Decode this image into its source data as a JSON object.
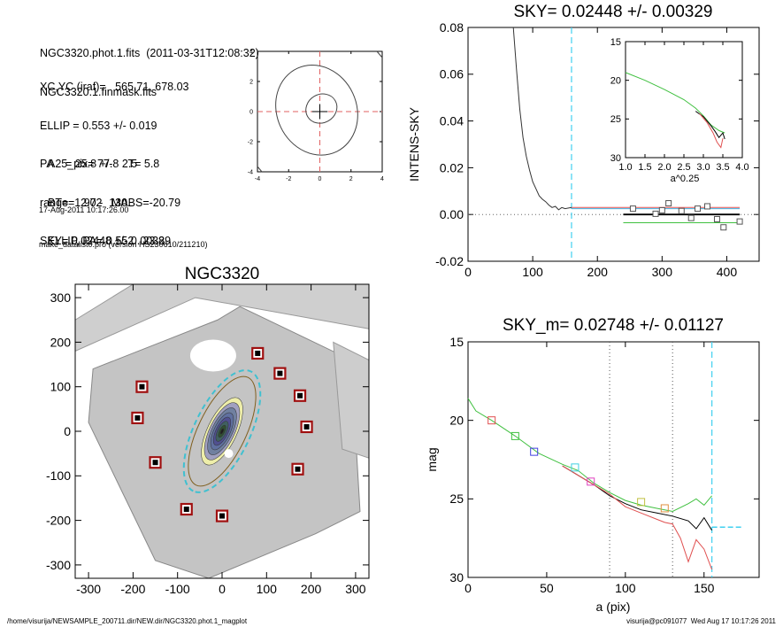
{
  "header": {
    "line1": "NGC3320.phot.1.fits  (2011-03-31T12:08:32)",
    "line2": "NGC3320.1.finmask.fits",
    "xcyc": "XC,YC (iraf)=   565.71, 678.03",
    "ellip": "ELLIP = 0.553 +/- 0.019",
    "pa": "PA    = 25.8 +/-   2.5",
    "range": "range=   90.-  130.",
    "sky": "SKY= 0.02448 +/- 0.00329",
    "a25": "A25_pix= 77.8   T= 5.8",
    "bt": "BT=  12.72   MABS=-20.79",
    "ellip_pa": "ELLIP, PA= 0.552   23.8",
    "date": "17-Aug-2011 10:17:26.00",
    "program": "make_datalist0.pro (version HS230610/211210)"
  },
  "footer": {
    "path": "/home/visurija/NEWSAMPLE_200711.dir/NEW.dir/NGC3320.phot.1_magplot",
    "user": "visurija@pc091077  Wed Aug 17 10:17:26 2011"
  },
  "chart_data": [
    {
      "id": "center-contour",
      "type": "contour",
      "xlim": [
        -4,
        4
      ],
      "ylim": [
        -4,
        4
      ],
      "xticks": [
        "-4",
        "-2",
        "0",
        "2",
        "4"
      ],
      "yticks": [
        "-4",
        "-2",
        "0",
        "2",
        "4"
      ],
      "crosshair": {
        "x": 0,
        "y": 0
      },
      "colors": {
        "lines": "#444444",
        "crosshair": "#e06060"
      }
    },
    {
      "id": "sky-profile",
      "type": "line",
      "title": "SKY= 0.02448 +/- 0.00329",
      "xlabel": "",
      "ylabel": "INTENS-SKY",
      "xlim": [
        0,
        450
      ],
      "ylim": [
        -0.02,
        0.08
      ],
      "xticks": [
        "0",
        "100",
        "200",
        "300",
        "400"
      ],
      "yticks": [
        "-0.02",
        "0.00",
        "0.02",
        "0.04",
        "0.06",
        "0.08"
      ],
      "sky_marker_x": 160,
      "profile": [
        [
          70,
          0.08
        ],
        [
          75,
          0.062
        ],
        [
          80,
          0.045
        ],
        [
          85,
          0.033
        ],
        [
          90,
          0.025
        ],
        [
          95,
          0.019
        ],
        [
          100,
          0.014
        ],
        [
          105,
          0.011
        ],
        [
          110,
          0.008
        ],
        [
          115,
          0.0065
        ],
        [
          120,
          0.0055
        ],
        [
          125,
          0.004
        ],
        [
          130,
          0.003
        ],
        [
          135,
          0.0035
        ],
        [
          140,
          0.002
        ],
        [
          145,
          0.003
        ],
        [
          150,
          0.0025
        ],
        [
          160,
          0.003
        ]
      ],
      "squares": [
        [
          255,
          0.0025
        ],
        [
          290,
          0.0003
        ],
        [
          300,
          0.0018
        ],
        [
          310,
          0.0048
        ],
        [
          330,
          0.0015
        ],
        [
          345,
          -0.0015
        ],
        [
          355,
          0.0025
        ],
        [
          370,
          0.0035
        ],
        [
          385,
          -0.002
        ],
        [
          395,
          -0.0055
        ],
        [
          420,
          -0.003
        ]
      ],
      "levels": [
        {
          "y": 0.003,
          "x0": 160,
          "x1": 420,
          "color": "#e05050"
        },
        {
          "y": 0.0025,
          "x0": 160,
          "x1": 420,
          "color": "#40b0e0"
        },
        {
          "y": 0.0,
          "x0": 240,
          "x1": 420,
          "color": "#000000"
        },
        {
          "y": -0.0035,
          "x0": 240,
          "x1": 420,
          "color": "#40c040"
        }
      ],
      "inset": {
        "xlabel": "a^0.25",
        "xlim": [
          1.0,
          4.0
        ],
        "ylim": [
          30,
          15
        ],
        "xticks": [
          "1.0",
          "1.5",
          "2.0",
          "2.5",
          "3.0",
          "3.5",
          "4.0"
        ],
        "yticks": [
          "15",
          "20",
          "25",
          "30"
        ],
        "green": [
          [
            1.0,
            19.0
          ],
          [
            1.5,
            20.0
          ],
          [
            2.0,
            21.2
          ],
          [
            2.5,
            22.5
          ],
          [
            2.8,
            23.6
          ],
          [
            3.0,
            24.6
          ],
          [
            3.2,
            25.8
          ],
          [
            3.4,
            26.5
          ],
          [
            3.55,
            26.8
          ]
        ],
        "black": [
          [
            2.8,
            24.0
          ],
          [
            3.0,
            24.7
          ],
          [
            3.2,
            25.9
          ],
          [
            3.3,
            26.6
          ],
          [
            3.4,
            27.4
          ],
          [
            3.5,
            26.8
          ],
          [
            3.55,
            27.6
          ]
        ],
        "red": [
          [
            2.9,
            24.3
          ],
          [
            3.1,
            25.5
          ],
          [
            3.25,
            26.8
          ],
          [
            3.35,
            28.0
          ],
          [
            3.45,
            28.7
          ],
          [
            3.5,
            27.5
          ]
        ]
      }
    },
    {
      "id": "galaxy-image",
      "type": "image",
      "title": "NGC3320",
      "xlim": [
        -330,
        330
      ],
      "ylim": [
        -330,
        330
      ],
      "xticks": [
        "-300",
        "-200",
        "-100",
        "0",
        "100",
        "200",
        "300"
      ],
      "yticks": [
        "-300",
        "-200",
        "-100",
        "0",
        "100",
        "200",
        "300"
      ],
      "ellipse": {
        "a": 150,
        "b": 60,
        "pa_deg": 25.8
      },
      "masks": [
        [
          -180,
          100
        ],
        [
          -190,
          30
        ],
        [
          -150,
          -70
        ],
        [
          -80,
          -175
        ],
        [
          0,
          -190
        ],
        [
          80,
          175
        ],
        [
          130,
          130
        ],
        [
          175,
          80
        ],
        [
          190,
          10
        ],
        [
          170,
          -85
        ]
      ],
      "colors": {
        "mask": "#a01010",
        "ellipse": "#40c0d0"
      }
    },
    {
      "id": "mag-profile",
      "type": "line",
      "title": "SKY_m=  0.02748 +/- 0.01127",
      "xlabel": "a (pix)",
      "ylabel": "mag",
      "xlim": [
        0,
        185
      ],
      "ylim": [
        30,
        15
      ],
      "xticks": [
        "0",
        "50",
        "100",
        "150"
      ],
      "yticks": [
        "15",
        "20",
        "25",
        "30"
      ],
      "range_lines": [
        90,
        130
      ],
      "sky_marker_x": 155,
      "sky_tail": {
        "x0": 155,
        "x1": 175,
        "y": 26.8
      },
      "green": [
        [
          0,
          18.6
        ],
        [
          5,
          19.4
        ],
        [
          15,
          20.0
        ],
        [
          30,
          21.0
        ],
        [
          45,
          22.1
        ],
        [
          60,
          22.8
        ],
        [
          70,
          23.2
        ],
        [
          80,
          24.0
        ],
        [
          90,
          24.6
        ],
        [
          100,
          25.1
        ],
        [
          110,
          25.4
        ],
        [
          120,
          25.6
        ],
        [
          130,
          25.8
        ],
        [
          140,
          25.3
        ],
        [
          145,
          25.0
        ],
        [
          150,
          25.4
        ],
        [
          155,
          24.8
        ]
      ],
      "black": [
        [
          60,
          22.9
        ],
        [
          80,
          24.1
        ],
        [
          90,
          24.8
        ],
        [
          100,
          25.3
        ],
        [
          110,
          25.7
        ],
        [
          120,
          25.9
        ],
        [
          130,
          26.1
        ],
        [
          140,
          26.4
        ],
        [
          145,
          26.9
        ],
        [
          150,
          26.2
        ],
        [
          155,
          27.0
        ]
      ],
      "red": [
        [
          60,
          22.9
        ],
        [
          80,
          24.1
        ],
        [
          90,
          24.7
        ],
        [
          100,
          25.5
        ],
        [
          110,
          25.9
        ],
        [
          120,
          26.3
        ],
        [
          125,
          26.5
        ],
        [
          130,
          26.6
        ],
        [
          135,
          27.5
        ],
        [
          140,
          29.0
        ],
        [
          145,
          27.6
        ],
        [
          150,
          28.2
        ],
        [
          155,
          29.5
        ]
      ],
      "squares": [
        [
          15,
          20.0,
          "#e05050"
        ],
        [
          30,
          21.0,
          "#40c040"
        ],
        [
          42,
          22.0,
          "#4040e0"
        ],
        [
          68,
          23.0,
          "#40d0e0"
        ],
        [
          78,
          23.9,
          "#e040c0"
        ],
        [
          110,
          25.2,
          "#c0c040"
        ],
        [
          125,
          25.6,
          "#e09040"
        ]
      ]
    }
  ]
}
